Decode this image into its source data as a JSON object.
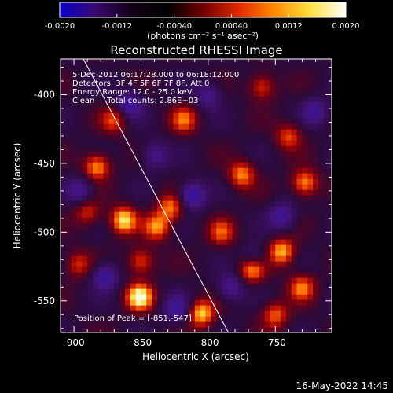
{
  "colorbar": {
    "tick_labels": [
      "-0.0020",
      "-0.0012",
      "-0.00040",
      "0.00040",
      "0.0012",
      "0.0020"
    ],
    "units": "(photons cm⁻² s⁻¹ asec⁻²)",
    "colors": [
      "#0a00c8",
      "#3a0a6e",
      "#140018",
      "#000000",
      "#6e0000",
      "#e02800",
      "#ff8a00",
      "#ffe040",
      "#ffffff"
    ]
  },
  "chart_data": {
    "type": "heatmap",
    "title": "Reconstructed RHESSI Image",
    "xlabel": "Heliocentric X (arcsec)",
    "ylabel": "Heliocentric Y (arcsec)",
    "xlim": [
      -910,
      -708
    ],
    "ylim": [
      -573,
      -374
    ],
    "xticks": [
      -900,
      -850,
      -800,
      -750
    ],
    "yticks": [
      -400,
      -450,
      -500,
      -550
    ],
    "limb_line": {
      "x": [
        -893,
        -785
      ],
      "y": [
        -374,
        -573
      ]
    },
    "annotations": [
      "5-Dec-2012 06:17:28.000 to 06:18:12.000",
      "Detectors: 3F 4F 5F 6F 7F 8F, Att 0",
      "Energy Range: 12.0 - 25.0 keV",
      "Clean     Total counts: 2.86E+03"
    ],
    "peak_label": "Position of Peak = [-851,-547]",
    "sources": [
      {
        "x": -851,
        "y": -547,
        "v": 1.0
      },
      {
        "x": -767,
        "y": -526,
        "v": 0.95
      },
      {
        "x": -745,
        "y": -514,
        "v": 0.8
      },
      {
        "x": -805,
        "y": -559,
        "v": 0.85
      },
      {
        "x": -863,
        "y": -491,
        "v": 0.9
      },
      {
        "x": -883,
        "y": -452,
        "v": 0.75
      },
      {
        "x": -838,
        "y": -496,
        "v": 0.7
      },
      {
        "x": -828,
        "y": -482,
        "v": 0.65
      },
      {
        "x": -775,
        "y": -458,
        "v": 0.7
      },
      {
        "x": -728,
        "y": -464,
        "v": 0.75
      },
      {
        "x": -870,
        "y": -418,
        "v": 0.55
      },
      {
        "x": -818,
        "y": -418,
        "v": 0.6
      },
      {
        "x": -760,
        "y": -394,
        "v": 0.55
      },
      {
        "x": -750,
        "y": -560,
        "v": 0.6
      },
      {
        "x": -850,
        "y": -521,
        "v": 0.6
      },
      {
        "x": -730,
        "y": -540,
        "v": 0.65
      },
      {
        "x": -897,
        "y": -523,
        "v": 0.5
      },
      {
        "x": -790,
        "y": -500,
        "v": 0.55
      },
      {
        "x": -740,
        "y": -430,
        "v": 0.55
      },
      {
        "x": -890,
        "y": -485,
        "v": 0.5
      },
      {
        "x": -812,
        "y": -473,
        "v": -0.7
      },
      {
        "x": -859,
        "y": -407,
        "v": -0.6
      },
      {
        "x": -823,
        "y": -556,
        "v": -0.55
      },
      {
        "x": -877,
        "y": -532,
        "v": -0.6
      },
      {
        "x": -783,
        "y": -540,
        "v": -0.5
      },
      {
        "x": -745,
        "y": -488,
        "v": -0.55
      },
      {
        "x": -895,
        "y": -470,
        "v": -0.5
      },
      {
        "x": -840,
        "y": -444,
        "v": -0.45
      },
      {
        "x": -720,
        "y": -412,
        "v": -0.5
      },
      {
        "x": -800,
        "y": -400,
        "v": -0.45
      },
      {
        "x": -766,
        "y": -520,
        "v": -0.6
      }
    ]
  },
  "footer": {
    "timestamp": "16-May-2022 14:45"
  }
}
